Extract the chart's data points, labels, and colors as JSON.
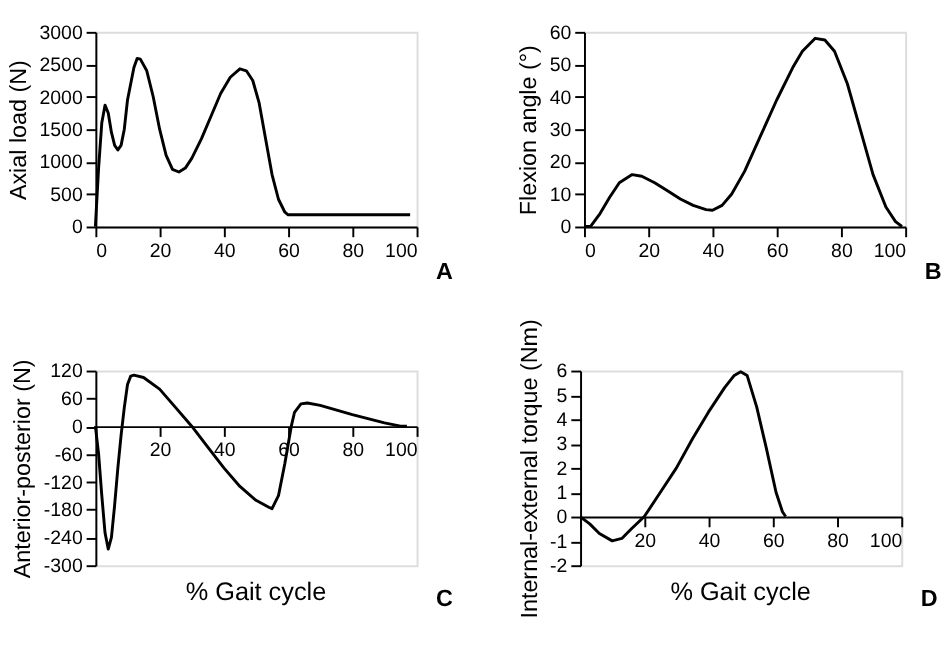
{
  "chart_data": [
    {
      "type": "line",
      "ylabel": "Axial load (N)",
      "annotations": [
        "A"
      ],
      "color": "#000000",
      "xlim": [
        0,
        100
      ],
      "xticks": [
        0,
        20,
        40,
        60,
        80,
        100
      ],
      "ylim": [
        0,
        3000
      ],
      "yticks": [
        0,
        500,
        1000,
        1500,
        2000,
        2500,
        3000
      ],
      "x": [
        0,
        1,
        2,
        3,
        4,
        5,
        6,
        7,
        8,
        9,
        10,
        12,
        13,
        14,
        16,
        18,
        20,
        22,
        24,
        26,
        28,
        30,
        33,
        36,
        39,
        42,
        45,
        47,
        49,
        51,
        53,
        55,
        57,
        59,
        60,
        98
      ],
      "values": [
        0,
        900,
        1600,
        1870,
        1750,
        1450,
        1250,
        1180,
        1250,
        1500,
        1950,
        2450,
        2590,
        2580,
        2400,
        2000,
        1500,
        1100,
        880,
        840,
        900,
        1050,
        1350,
        1700,
        2050,
        2300,
        2430,
        2400,
        2250,
        1900,
        1350,
        800,
        420,
        220,
        180,
        180
      ]
    },
    {
      "type": "line",
      "ylabel": "Flexion angle (°)",
      "annotations": [
        "B"
      ],
      "color": "#000000",
      "xlim": [
        0,
        100
      ],
      "xticks": [
        0,
        20,
        40,
        60,
        80,
        100
      ],
      "ylim": [
        0,
        60
      ],
      "yticks": [
        0,
        10,
        20,
        30,
        40,
        50,
        60
      ],
      "x": [
        0,
        2,
        5,
        8,
        11,
        15,
        18,
        22,
        26,
        30,
        34,
        38,
        40,
        43,
        46,
        50,
        55,
        60,
        65,
        68,
        72,
        75,
        78,
        82,
        86,
        90,
        94,
        97,
        99
      ],
      "values": [
        0,
        0,
        4,
        9,
        13.5,
        16,
        15.5,
        13.5,
        11,
        8.5,
        6.5,
        5.2,
        5,
        6.5,
        10,
        17,
        28,
        39,
        49,
        54,
        58,
        57.5,
        54,
        44,
        30,
        16,
        6,
        1.5,
        0
      ]
    },
    {
      "type": "line",
      "ylabel": "Anterior-posterior (N)",
      "xlabel": "% Gait cycle",
      "annotations": [
        "C"
      ],
      "color": "#000000",
      "xlim": [
        0,
        100
      ],
      "xticks": [
        {
          "value": 0,
          "label": null
        },
        20,
        40,
        60,
        80,
        100
      ],
      "ylim": [
        -300,
        120
      ],
      "yticks": [
        -300,
        -240,
        -180,
        -120,
        -60,
        0,
        60,
        120
      ],
      "x": [
        0,
        1,
        2,
        3,
        4,
        5,
        6,
        7,
        8,
        9,
        10,
        11,
        12,
        15,
        20,
        25,
        30,
        35,
        40,
        45,
        50,
        54,
        55,
        57,
        59,
        61,
        62,
        64,
        66,
        70,
        80,
        90,
        95,
        97
      ],
      "values": [
        0,
        -60,
        -150,
        -230,
        -265,
        -240,
        -170,
        -90,
        -20,
        40,
        90,
        108,
        110,
        105,
        80,
        40,
        0,
        -45,
        -90,
        -130,
        -160,
        -175,
        -178,
        -150,
        -80,
        0,
        30,
        48,
        50,
        45,
        25,
        7,
        0,
        0
      ]
    },
    {
      "type": "line",
      "ylabel": "Internal-external  torque (Nm)",
      "xlabel": "% Gait cycle",
      "annotations": [
        "D"
      ],
      "color": "#000000",
      "xlim": [
        0,
        100
      ],
      "xticks": [
        {
          "value": 0,
          "label": null
        },
        20,
        40,
        60,
        80,
        100
      ],
      "ylim": [
        -2,
        6
      ],
      "yticks": [
        -2,
        -1,
        0,
        1,
        2,
        3,
        4,
        5,
        6
      ],
      "x": [
        0,
        3,
        6,
        10,
        13,
        16,
        20,
        25,
        30,
        35,
        40,
        45,
        48,
        50,
        52,
        55,
        58,
        61,
        63,
        64
      ],
      "values": [
        0,
        -0.3,
        -0.7,
        -1,
        -0.9,
        -0.5,
        0,
        1,
        2,
        3.2,
        4.3,
        5.3,
        5.8,
        5.95,
        5.8,
        4.5,
        2.8,
        1,
        0.2,
        0
      ]
    }
  ]
}
